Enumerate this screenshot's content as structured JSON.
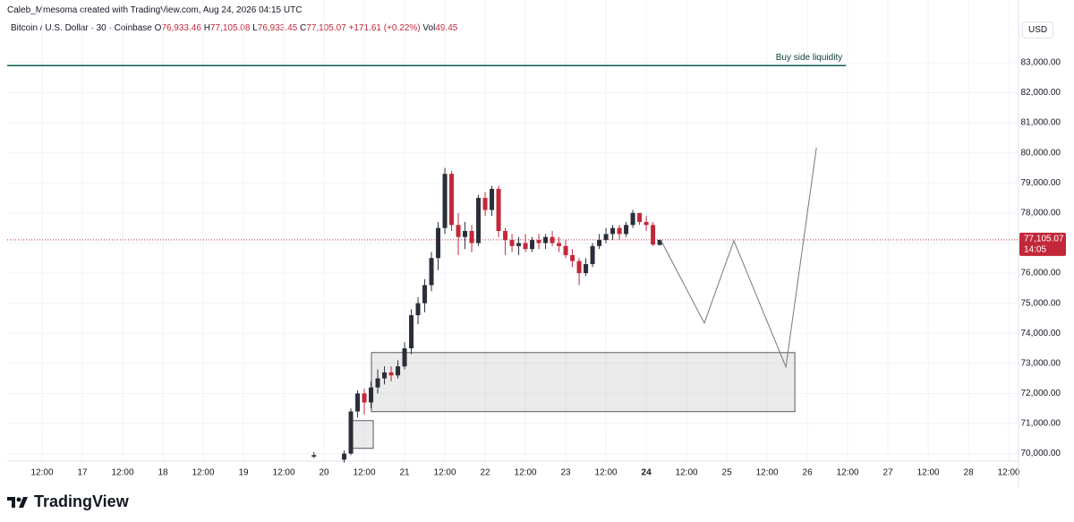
{
  "header": {
    "credit": "Caleb_Mmesoma created with TradingView.com, Aug 24, 2026 04:15 UTC",
    "symbol": "Bitcoin / U.S. Dollar · 30 · Coinbase",
    "ohlc": [
      {
        "label": "O",
        "value": "76,933.46"
      },
      {
        "label": "H",
        "value": "77,105.08"
      },
      {
        "label": "L",
        "value": "76,933.45"
      },
      {
        "label": "C",
        "value": "77,105.07"
      }
    ],
    "change": "+171.61 (+0.22%)",
    "volume_label": "Vol",
    "volume": "49.45",
    "currency": "USD"
  },
  "chart_data": {
    "type": "candlestick",
    "x": [
      69,
      78,
      80,
      82,
      84,
      86,
      88,
      90,
      92,
      94,
      96,
      98,
      100,
      102,
      104,
      106,
      108,
      110,
      112,
      114,
      116,
      118,
      120,
      122,
      124,
      126,
      128,
      130,
      132,
      134,
      136,
      138,
      140,
      142,
      144,
      146,
      148,
      150,
      152,
      154,
      156,
      158,
      160,
      162,
      164,
      166,
      168,
      170,
      172
    ],
    "open": [
      69900,
      69800,
      70000,
      71400,
      72000,
      71700,
      72200,
      72500,
      72700,
      72600,
      72900,
      73500,
      74600,
      75000,
      75600,
      76500,
      77500,
      79300,
      77600,
      77200,
      77400,
      77000,
      78500,
      78100,
      78800,
      77400,
      77100,
      76900,
      77000,
      76800,
      77100,
      77000,
      77200,
      77000,
      76900,
      76600,
      76400,
      76000,
      76300,
      76900,
      77100,
      77300,
      77500,
      77300,
      77600,
      78000,
      77700,
      77600,
      76933.46
    ],
    "high": [
      70050,
      70100,
      71500,
      72100,
      72150,
      72400,
      72800,
      72900,
      72900,
      73100,
      73700,
      74800,
      75200,
      75800,
      76700,
      77700,
      79500,
      79400,
      78000,
      77700,
      77600,
      78600,
      78700,
      78900,
      78900,
      77500,
      77300,
      77200,
      77300,
      77200,
      77300,
      77300,
      77400,
      77200,
      77100,
      76800,
      76500,
      76500,
      77000,
      77300,
      77500,
      77600,
      77600,
      77700,
      78100,
      78000,
      77900,
      77700,
      77105.08
    ],
    "low": [
      69850,
      69700,
      69950,
      71200,
      71300,
      71500,
      72000,
      72300,
      72400,
      72500,
      72800,
      73300,
      74300,
      74700,
      75400,
      76100,
      77300,
      77400,
      76600,
      76800,
      76700,
      76900,
      77900,
      77900,
      77200,
      76600,
      76700,
      76600,
      76700,
      76700,
      76800,
      76800,
      76900,
      76700,
      76500,
      76200,
      75600,
      75900,
      76200,
      76800,
      77000,
      77100,
      77100,
      77200,
      77500,
      77600,
      77400,
      76900,
      76933.45
    ],
    "close": [
      69950,
      70000,
      71400,
      72000,
      71700,
      72200,
      72500,
      72700,
      72600,
      72900,
      73500,
      74600,
      75000,
      75600,
      76500,
      77500,
      79300,
      77600,
      77200,
      77400,
      77000,
      78500,
      78100,
      78800,
      77400,
      77100,
      76900,
      77000,
      76800,
      77100,
      77000,
      77200,
      77000,
      76900,
      76600,
      76400,
      76000,
      76300,
      76900,
      77100,
      77300,
      77500,
      77300,
      77600,
      78000,
      77700,
      77600,
      76950,
      77105.07
    ],
    "up_color": "#2a2e39",
    "down_color": "#c2283a",
    "xlim": [
      -22.4,
      278.9
    ],
    "ylim": [
      69750,
      85080
    ],
    "xticks": [
      {
        "value": -12,
        "label": "12:00"
      },
      {
        "value": 0,
        "label": "17"
      },
      {
        "value": 12,
        "label": "12:00"
      },
      {
        "value": 24,
        "label": "18"
      },
      {
        "value": 36,
        "label": "12:00"
      },
      {
        "value": 48,
        "label": "19"
      },
      {
        "value": 60,
        "label": "12:00"
      },
      {
        "value": 72,
        "label": "20"
      },
      {
        "value": 84,
        "label": "12:00"
      },
      {
        "value": 96,
        "label": "21"
      },
      {
        "value": 108,
        "label": "12:00"
      },
      {
        "value": 120,
        "label": "22"
      },
      {
        "value": 132,
        "label": "12:00"
      },
      {
        "value": 144,
        "label": "23"
      },
      {
        "value": 156,
        "label": "12:00"
      },
      {
        "value": 168,
        "label": "24",
        "bold": true
      },
      {
        "value": 180,
        "label": "12:00"
      },
      {
        "value": 192,
        "label": "25"
      },
      {
        "value": 204,
        "label": "12:00"
      },
      {
        "value": 216,
        "label": "26"
      },
      {
        "value": 228,
        "label": "12:00"
      },
      {
        "value": 240,
        "label": "27"
      },
      {
        "value": 252,
        "label": "12:00"
      },
      {
        "value": 264,
        "label": "28"
      },
      {
        "value": 276,
        "label": "12:00"
      }
    ],
    "yticks": [
      {
        "value": 70000,
        "label": "70,000.00"
      },
      {
        "value": 71000,
        "label": "71,000.00"
      },
      {
        "value": 72000,
        "label": "72,000.00"
      },
      {
        "value": 73000,
        "label": "73,000.00"
      },
      {
        "value": 74000,
        "label": "74,000.00"
      },
      {
        "value": 75000,
        "label": "75,000.00"
      },
      {
        "value": 76000,
        "label": "76,000.00"
      },
      {
        "value": 77000,
        "label": "77,000.00"
      },
      {
        "value": 78000,
        "label": "78,000.00"
      },
      {
        "value": 79000,
        "label": "79,000.00"
      },
      {
        "value": 80000,
        "label": "80,000.00"
      },
      {
        "value": 81000,
        "label": "81,000.00"
      },
      {
        "value": 82000,
        "label": "82,000.00"
      },
      {
        "value": 83000,
        "label": "83,000.00"
      }
    ],
    "grid": true,
    "last_price_label": "77,105.07",
    "countdown": "14:05",
    "last_price_color": "#c2283a",
    "liquidity_line": {
      "label": "Buy side liquidity",
      "price": 82900,
      "x": [
        -22.4,
        227.5
      ],
      "color": "#0b5e52"
    },
    "zones": [
      {
        "x": [
          86.13,
          212.27
        ],
        "y": [
          71393,
          73357
        ]
      },
      {
        "x": [
          80.27,
          86.67
        ],
        "y": [
          70173,
          71095
        ]
      }
    ],
    "projection": {
      "x": [
        172.3,
        185.3,
        194.1,
        209.6,
        218.7
      ],
      "y": [
        77107,
        74339,
        77077,
        72881,
        80173
      ]
    }
  },
  "footer": {
    "brand": "TradingView"
  }
}
